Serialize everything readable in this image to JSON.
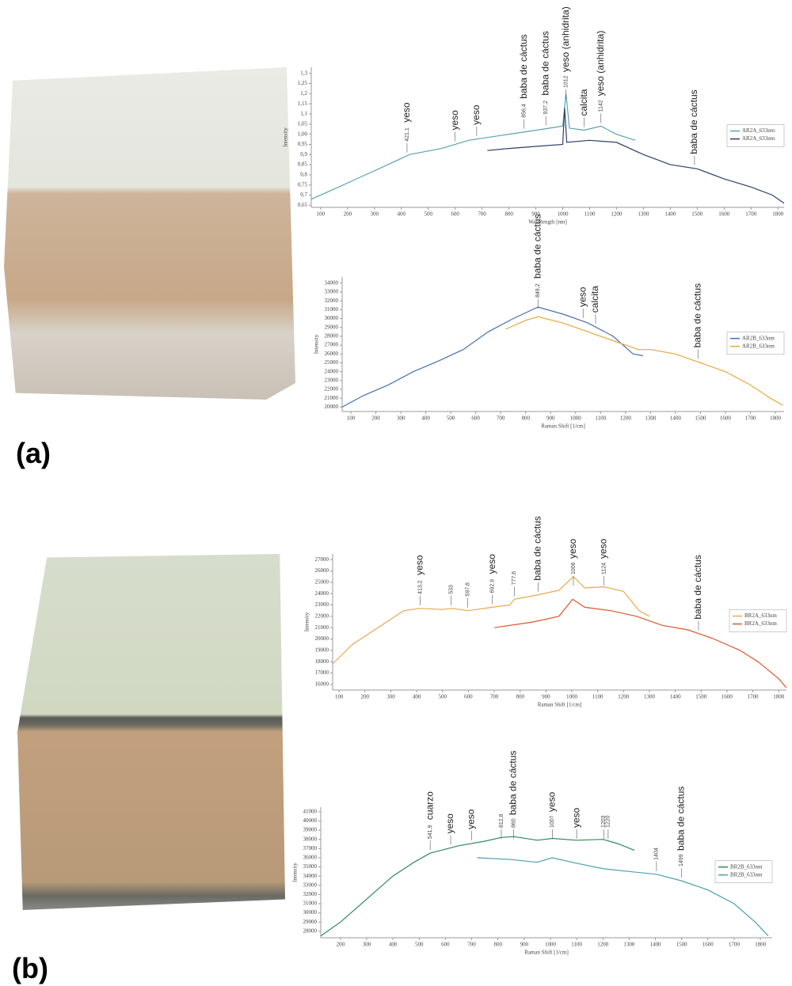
{
  "panel_labels": [
    "(a)",
    "(b)"
  ],
  "chart_data": [
    {
      "type": "line",
      "x_label": "Wavelength [nm]",
      "y_label": "Intensity",
      "xlim": [
        65,
        1823
      ],
      "ylim": [
        0.64,
        1.33
      ],
      "xticks": [
        100,
        200,
        300,
        400,
        500,
        600,
        700,
        800,
        900,
        1000,
        1100,
        1200,
        1300,
        1400,
        1500,
        1600,
        1700,
        1800
      ],
      "yticks": [
        {
          "value": 1.3,
          "label": "1,3"
        },
        {
          "value": 1.25,
          "label": "1,25"
        },
        {
          "value": 1.2,
          "label": "1,2"
        },
        {
          "value": 1.15,
          "label": "1,15"
        },
        {
          "value": 1.1,
          "label": "1,1"
        },
        {
          "value": 1.05,
          "label": "1,05"
        },
        {
          "value": 1.0,
          "label": "1,00"
        },
        {
          "value": 0.95,
          "label": "0,95"
        },
        {
          "value": 0.9,
          "label": "0,9"
        },
        {
          "value": 0.85,
          "label": "0,85"
        },
        {
          "value": 0.8,
          "label": "0,8"
        },
        {
          "value": 0.75,
          "label": "0,75"
        },
        {
          "value": 0.7,
          "label": "0,7"
        },
        {
          "value": 0.65,
          "label": "0,65"
        }
      ],
      "series": [
        {
          "name": "AR2A_633nm",
          "color": "#5aa3b3",
          "x": [
            65,
            150,
            250,
            350,
            430,
            550,
            650,
            750,
            850,
            950,
            1000,
            1012,
            1025,
            1080,
            1142,
            1200,
            1270
          ],
          "values": [
            0.68,
            0.73,
            0.79,
            0.85,
            0.9,
            0.93,
            0.97,
            0.99,
            1.01,
            1.03,
            1.04,
            1.2,
            1.03,
            1.02,
            1.04,
            1.0,
            0.97
          ]
        },
        {
          "name": "AR2A_633nm",
          "color": "#2c3e6a",
          "x": [
            720,
            800,
            900,
            1000,
            1007,
            1015,
            1100,
            1200,
            1300,
            1400,
            1500,
            1600,
            1700,
            1780,
            1823
          ],
          "values": [
            0.92,
            0.93,
            0.94,
            0.95,
            1.13,
            0.96,
            0.97,
            0.96,
            0.9,
            0.85,
            0.83,
            0.78,
            0.74,
            0.7,
            0.66
          ]
        }
      ],
      "annotations": [
        {
          "x": 421.1,
          "label": "421,1",
          "text": "yeso"
        },
        {
          "x": 600,
          "text": "yeso"
        },
        {
          "x": 680,
          "text": "yeso"
        },
        {
          "x": 856.4,
          "label": "856,4",
          "text": "baba de cáctus"
        },
        {
          "x": 937.2,
          "label": "937,2",
          "text": "baba de cáctus"
        },
        {
          "x": 1012,
          "label": "1012",
          "text": "yeso (anhidrita)"
        },
        {
          "x": 1080,
          "text": "calcita"
        },
        {
          "x": 1142,
          "label": "1142",
          "text": "yeso (anhidrita)"
        },
        {
          "x": 1490,
          "text": "baba de cáctus"
        }
      ]
    },
    {
      "type": "line",
      "x_label": "Raman Shift [1/cm]",
      "y_label": "Intensity",
      "xlim": [
        65,
        1835
      ],
      "ylim": [
        19500,
        34700
      ],
      "xticks": [
        100,
        200,
        300,
        400,
        500,
        600,
        700,
        800,
        900,
        1000,
        1100,
        1200,
        1300,
        1400,
        1500,
        1600,
        1700,
        1800
      ],
      "yticks": [
        20000,
        21000,
        22000,
        23000,
        24000,
        25000,
        26000,
        27000,
        28000,
        29000,
        30000,
        31000,
        32000,
        33000,
        34000
      ],
      "series": [
        {
          "name": "AR2B_633nm",
          "color": "#4a6fb0",
          "x": [
            65,
            150,
            250,
            350,
            450,
            550,
            650,
            750,
            849.2,
            950,
            1050,
            1150,
            1230,
            1270
          ],
          "values": [
            20000,
            21300,
            22500,
            24000,
            25200,
            26500,
            28500,
            30000,
            31300,
            30500,
            29500,
            28000,
            26000,
            25800
          ]
        },
        {
          "name": "AR2B_633nm",
          "color": "#e8a840",
          "x": [
            720,
            800,
            850,
            950,
            1050,
            1150,
            1250,
            1300,
            1400,
            1450,
            1500,
            1600,
            1700,
            1780,
            1830
          ],
          "values": [
            28800,
            29800,
            30200,
            29500,
            28500,
            27500,
            26500,
            26500,
            26000,
            25500,
            25000,
            24000,
            22500,
            21000,
            20200
          ]
        }
      ],
      "annotations": [
        {
          "x": 849.2,
          "label": "849,2",
          "text": "baba de cáctus"
        },
        {
          "x": 1030,
          "text": "yeso"
        },
        {
          "x": 1080,
          "text": "calcita"
        },
        {
          "x": 1490,
          "text": "baba de cáctus"
        }
      ]
    },
    {
      "type": "line",
      "x_label": "Raman Shift [1/cm]",
      "y_label": "Intensity",
      "xlim": [
        75,
        1830
      ],
      "ylim": [
        15500,
        27500
      ],
      "xticks": [
        100,
        200,
        300,
        400,
        500,
        600,
        700,
        800,
        900,
        1000,
        1100,
        1200,
        1300,
        1400,
        1500,
        1600,
        1700,
        1800
      ],
      "yticks": [
        16000,
        17000,
        18000,
        19000,
        20000,
        21000,
        22000,
        23000,
        24000,
        25000,
        26000,
        27000
      ],
      "series": [
        {
          "name": "BR2A_633nm",
          "color": "#e8a850",
          "x": [
            75,
            150,
            250,
            350,
            413.2,
            500,
            533,
            600,
            692.9,
            760,
            777.6,
            850,
            950,
            1006,
            1050,
            1124,
            1200,
            1260,
            1300
          ],
          "values": [
            17800,
            19500,
            21000,
            22500,
            22700,
            22600,
            22700,
            22500,
            22800,
            23000,
            23500,
            23800,
            24300,
            25500,
            24500,
            24600,
            24200,
            22500,
            22000
          ]
        },
        {
          "name": "BR2A_633nm",
          "color": "#d9582a",
          "x": [
            700,
            850,
            950,
            1003,
            1050,
            1150,
            1250,
            1350,
            1450,
            1550,
            1650,
            1720,
            1800,
            1830
          ],
          "values": [
            21000,
            21500,
            22000,
            23500,
            22800,
            22500,
            22000,
            21200,
            20800,
            20000,
            19000,
            18000,
            16500,
            15700
          ]
        }
      ],
      "annotations": [
        {
          "x": 413.2,
          "label": "413,2",
          "text": "yeso"
        },
        {
          "x": 533,
          "label": "533"
        },
        {
          "x": 597.8,
          "label": "597,8"
        },
        {
          "x": 692.9,
          "label": "692,9",
          "text": "yeso"
        },
        {
          "x": 777.6,
          "label": "777,6"
        },
        {
          "x": 870,
          "text": "baba de cáctus"
        },
        {
          "x": 1006,
          "label": "1006",
          "text": "yeso"
        },
        {
          "x": 1124,
          "label": "1124",
          "text": "yeso"
        },
        {
          "x": 1490,
          "text": "baba de cáctus"
        }
      ]
    },
    {
      "type": "line",
      "x_label": "Raman Shift [1/cm]",
      "y_label": "Intensity",
      "xlim": [
        125,
        1845
      ],
      "ylim": [
        27300,
        41500
      ],
      "xticks": [
        200,
        300,
        400,
        500,
        600,
        700,
        800,
        900,
        1000,
        1100,
        1200,
        1300,
        1400,
        1500,
        1600,
        1700,
        1800
      ],
      "yticks": [
        28000,
        29000,
        30000,
        31000,
        32000,
        33000,
        34000,
        35000,
        36000,
        37000,
        38000,
        39000,
        40000,
        41000
      ],
      "series": [
        {
          "name": "BR2B_633nm",
          "color": "#2e8a5e",
          "x": [
            125,
            200,
            300,
            400,
            480,
            541.9,
            650,
            750,
            812.8,
            860,
            950,
            1007,
            1100,
            1200,
            1260,
            1320
          ],
          "values": [
            27500,
            29000,
            31500,
            34000,
            35500,
            36500,
            37300,
            37800,
            38200,
            38300,
            37900,
            38100,
            37900,
            38000,
            37500,
            36800
          ]
        },
        {
          "name": "BR2B_633nm",
          "color": "#4aa0b0",
          "x": [
            720,
            850,
            950,
            1007,
            1100,
            1203,
            1300,
            1404,
            1499,
            1600,
            1700,
            1780,
            1830
          ],
          "values": [
            36000,
            35800,
            35500,
            36000,
            35400,
            34800,
            34500,
            34200,
            33500,
            32500,
            31000,
            29000,
            27500
          ]
        }
      ],
      "annotations": [
        {
          "x": 541.9,
          "label": "541,9",
          "text": "cuarzo"
        },
        {
          "x": 620,
          "text": "yeso"
        },
        {
          "x": 700,
          "text": "yeso"
        },
        {
          "x": 812.8,
          "label": "812,8"
        },
        {
          "x": 860,
          "label": "860",
          "text": "baba de cáctus"
        },
        {
          "x": 1007,
          "label": "1007",
          "text": "yeso"
        },
        {
          "x": 1100,
          "text": "yeso"
        },
        {
          "x": 1203,
          "label": "1203"
        },
        {
          "x": 1220,
          "label": "1220"
        },
        {
          "x": 1404,
          "label": "1404"
        },
        {
          "x": 1499,
          "label": "1499",
          "text": "baba de cáctus"
        }
      ]
    }
  ]
}
